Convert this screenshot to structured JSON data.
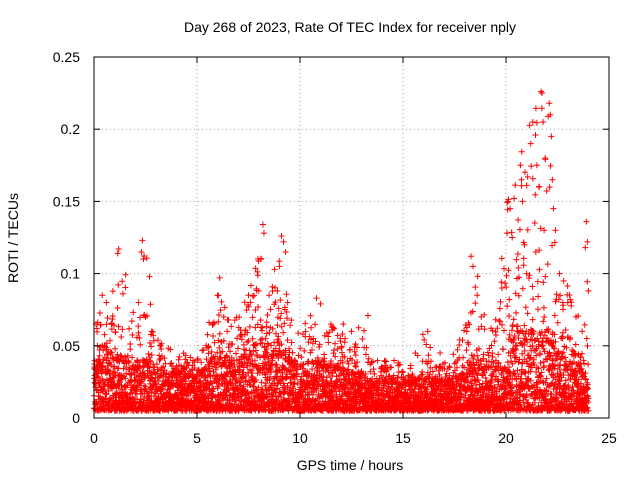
{
  "chart_data": {
    "type": "scatter",
    "title": "Day 268 of 2023, Rate Of TEC Index for receiver nply",
    "xlabel": "GPS time / hours",
    "ylabel": "ROTI / TECUs",
    "xlim": [
      0,
      25
    ],
    "ylim": [
      0,
      0.25
    ],
    "x_ticks": [
      "0",
      "5",
      "10",
      "15",
      "20",
      "25"
    ],
    "y_ticks": [
      "0",
      "0.05",
      "0.1",
      "0.15",
      "0.2",
      "0.25"
    ],
    "x_tick_values": [
      0,
      5,
      10,
      15,
      20,
      25
    ],
    "y_tick_values": [
      0,
      0.05,
      0.1,
      0.15,
      0.2,
      0.25
    ],
    "grid": true,
    "marker": "plus",
    "color": "#ff0000",
    "envelope_x": [
      0,
      0.5,
      1,
      1.5,
      2,
      2.5,
      3,
      3.5,
      4,
      4.5,
      5,
      5.5,
      6,
      6.5,
      7,
      7.5,
      8,
      8.5,
      9,
      9.5,
      10,
      10.5,
      11,
      11.5,
      12,
      12.5,
      13,
      13.5,
      14,
      14.5,
      15,
      15.5,
      16,
      16.5,
      17,
      17.5,
      18,
      18.5,
      19,
      19.5,
      20,
      20.5,
      21,
      21.5,
      22,
      22.5,
      23,
      23.5,
      24
    ],
    "envelope_max": [
      0.065,
      0.085,
      0.09,
      0.115,
      0.07,
      0.12,
      0.065,
      0.05,
      0.045,
      0.045,
      0.04,
      0.06,
      0.095,
      0.07,
      0.07,
      0.095,
      0.135,
      0.08,
      0.125,
      0.075,
      0.06,
      0.08,
      0.06,
      0.065,
      0.065,
      0.05,
      0.07,
      0.04,
      0.04,
      0.04,
      0.045,
      0.035,
      0.06,
      0.045,
      0.04,
      0.045,
      0.065,
      0.11,
      0.07,
      0.06,
      0.15,
      0.175,
      0.205,
      0.225,
      0.22,
      0.11,
      0.1,
      0.075,
      0.135
    ],
    "envelope_typical": [
      0.035,
      0.05,
      0.04,
      0.04,
      0.035,
      0.04,
      0.035,
      0.03,
      0.03,
      0.03,
      0.028,
      0.035,
      0.045,
      0.04,
      0.04,
      0.045,
      0.055,
      0.045,
      0.05,
      0.04,
      0.035,
      0.04,
      0.035,
      0.035,
      0.035,
      0.03,
      0.03,
      0.025,
      0.025,
      0.025,
      0.025,
      0.025,
      0.03,
      0.025,
      0.025,
      0.028,
      0.03,
      0.04,
      0.035,
      0.035,
      0.05,
      0.06,
      0.06,
      0.06,
      0.055,
      0.045,
      0.04,
      0.035,
      0.03
    ],
    "baseline_min": 0.005,
    "points": [
      [
        0.1,
        0.065
      ],
      [
        0.4,
        0.085
      ],
      [
        0.6,
        0.08
      ],
      [
        1.2,
        0.117
      ],
      [
        1.15,
        0.114
      ],
      [
        2.35,
        0.123
      ],
      [
        2.3,
        0.115
      ],
      [
        2.4,
        0.11
      ],
      [
        2.5,
        0.07
      ],
      [
        2.8,
        0.06
      ],
      [
        6.1,
        0.097
      ],
      [
        6.0,
        0.085
      ],
      [
        6.3,
        0.07
      ],
      [
        7.6,
        0.08
      ],
      [
        7.5,
        0.085
      ],
      [
        8.0,
        0.088
      ],
      [
        8.2,
        0.134
      ],
      [
        8.25,
        0.128
      ],
      [
        8.1,
        0.11
      ],
      [
        8.5,
        0.085
      ],
      [
        9.1,
        0.126
      ],
      [
        9.2,
        0.122
      ],
      [
        9.3,
        0.115
      ],
      [
        9.0,
        0.105
      ],
      [
        9.4,
        0.08
      ],
      [
        10.8,
        0.083
      ],
      [
        11.0,
        0.079
      ],
      [
        11.5,
        0.065
      ],
      [
        12.1,
        0.065
      ],
      [
        12.5,
        0.06
      ],
      [
        13.3,
        0.071
      ],
      [
        15.6,
        0.045
      ],
      [
        16.2,
        0.06
      ],
      [
        16.8,
        0.045
      ],
      [
        18.3,
        0.112
      ],
      [
        18.4,
        0.105
      ],
      [
        18.6,
        0.085
      ],
      [
        18.8,
        0.07
      ],
      [
        19.5,
        0.068
      ],
      [
        19.8,
        0.09
      ],
      [
        20.1,
        0.15
      ],
      [
        20.2,
        0.145
      ],
      [
        20.3,
        0.125
      ],
      [
        20.05,
        0.128
      ],
      [
        20.6,
        0.104
      ],
      [
        20.7,
        0.175
      ],
      [
        20.75,
        0.165
      ],
      [
        20.8,
        0.15
      ],
      [
        20.9,
        0.12
      ],
      [
        21.0,
        0.1
      ],
      [
        21.3,
        0.205
      ],
      [
        21.2,
        0.19
      ],
      [
        21.4,
        0.135
      ],
      [
        21.5,
        0.175
      ],
      [
        21.6,
        0.16
      ],
      [
        21.7,
        0.226
      ],
      [
        21.75,
        0.225
      ],
      [
        21.8,
        0.205
      ],
      [
        21.9,
        0.18
      ],
      [
        21.85,
        0.13
      ],
      [
        22.1,
        0.218
      ],
      [
        22.15,
        0.21
      ],
      [
        22.2,
        0.195
      ],
      [
        22.25,
        0.165
      ],
      [
        22.3,
        0.145
      ],
      [
        22.4,
        0.13
      ],
      [
        22.6,
        0.1
      ],
      [
        22.8,
        0.095
      ],
      [
        23.0,
        0.08
      ],
      [
        23.4,
        0.07
      ],
      [
        23.9,
        0.136
      ],
      [
        23.95,
        0.122
      ],
      [
        23.85,
        0.118
      ],
      [
        24.0,
        0.088
      ],
      [
        23.7,
        0.06
      ]
    ]
  }
}
